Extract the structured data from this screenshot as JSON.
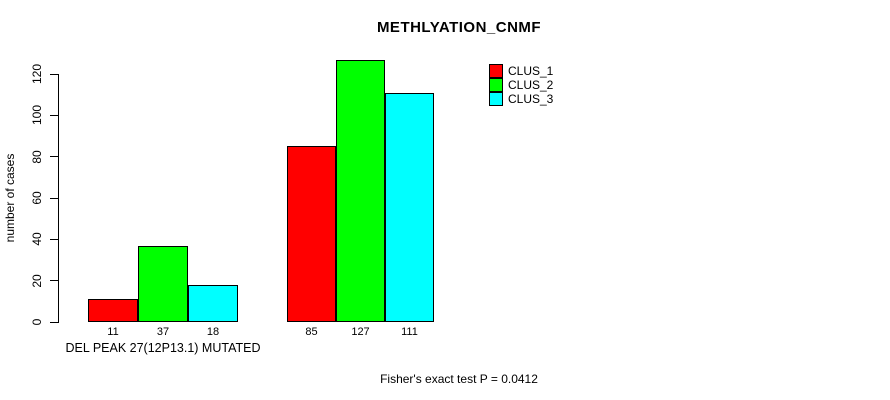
{
  "chart_data": {
    "type": "bar",
    "title": "METHLYATION_CNMF",
    "ylabel": "number of cases",
    "xlabel": "",
    "categories": [
      "DEL PEAK 27(12P13.1) MUTATED",
      ""
    ],
    "series": [
      {
        "name": "CLUS_1",
        "color": "#ff0000",
        "values": [
          11,
          85
        ]
      },
      {
        "name": "CLUS_2",
        "color": "#00ff00",
        "values": [
          37,
          127
        ]
      },
      {
        "name": "CLUS_3",
        "color": "#00ffff",
        "values": [
          18,
          111
        ]
      }
    ],
    "yticks": [
      0,
      20,
      40,
      60,
      80,
      100,
      120
    ],
    "ylim": [
      0,
      130
    ],
    "grid": false,
    "legend_position": "top-right",
    "bar_borders": "#000000",
    "annotation": "Fisher's exact test P = 0.0412"
  }
}
